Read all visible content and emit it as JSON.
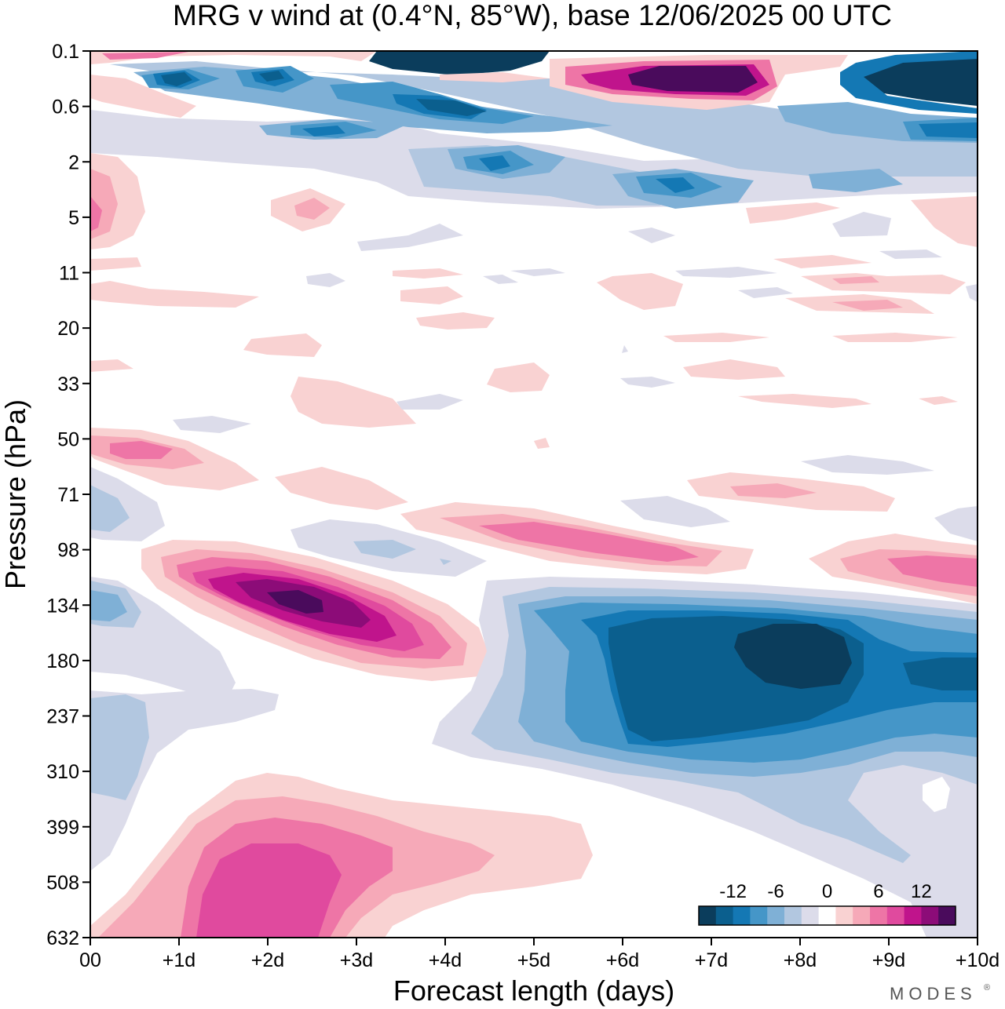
{
  "chart_data": {
    "type": "heatmap",
    "title": "MRG v wind at (0.4°N, 85°W),  base 12/06/2025  00 UTC",
    "xlabel": "Forecast length (days)",
    "ylabel": "Pressure (hPa)",
    "x_ticks": [
      "00",
      "+1d",
      "+2d",
      "+3d",
      "+4d",
      "+5d",
      "+6d",
      "+7d",
      "+8d",
      "+9d",
      "+10d"
    ],
    "y_ticks": [
      "0.1",
      "0.6",
      "2",
      "5",
      "11",
      "20",
      "33",
      "50",
      "71",
      "98",
      "134",
      "180",
      "237",
      "310",
      "399",
      "508",
      "632"
    ],
    "xlim": [
      0,
      10
    ],
    "colorbar": {
      "labels": [
        "-12",
        "-6",
        "0",
        "6",
        "12"
      ],
      "levels": [
        -14,
        -12,
        -10,
        -8,
        -6,
        -4,
        -2,
        2,
        4,
        6,
        8,
        10,
        12,
        14
      ],
      "colors": [
        "#0b3d5c",
        "#0b5f8e",
        "#1478b4",
        "#4596c8",
        "#7fb0d6",
        "#b2c7e0",
        "#dcdcea",
        "#ffffff",
        "#f9d2d2",
        "#f6a9b8",
        "#ee75a6",
        "#e04a9e",
        "#c0148c",
        "#8c0c78",
        "#4a0b5c"
      ]
    },
    "features": [
      {
        "name": "stratosphere-negative-top",
        "x": [
          3.4,
          4.7
        ],
        "p": [
          0.1,
          0.25
        ],
        "value": -14
      },
      {
        "name": "stratosphere-positive-top",
        "x": [
          5.9,
          8.3
        ],
        "p": [
          0.15,
          0.6
        ],
        "value": 14
      },
      {
        "name": "stratosphere-negative-right",
        "x": [
          8.7,
          10.0
        ],
        "p": [
          0.1,
          0.7
        ],
        "value": -14
      },
      {
        "name": "stratosphere-negative-band",
        "x": [
          0.5,
          10.0
        ],
        "p": [
          0.2,
          4.0
        ],
        "value": -8
      },
      {
        "name": "upper-trop-positive",
        "x": [
          0.6,
          4.4
        ],
        "p": [
          98,
          180
        ],
        "value": 14
      },
      {
        "name": "upper-trop-negative",
        "x": [
          4.8,
          10.0
        ],
        "p": [
          134,
          310
        ],
        "value": -14
      },
      {
        "name": "lower-trop-positive",
        "x": [
          0.0,
          5.7
        ],
        "p": [
          310,
          632
        ],
        "value": 8
      },
      {
        "name": "mid-level-positive",
        "x": [
          3.5,
          7.2
        ],
        "p": [
          71,
          98
        ],
        "value": 8
      },
      {
        "name": "level-50hPa-positive",
        "x": [
          0.0,
          2.0
        ],
        "p": [
          50,
          71
        ],
        "value": 8
      }
    ]
  },
  "branding": {
    "logo_text": "MODES",
    "trademark": "®"
  }
}
